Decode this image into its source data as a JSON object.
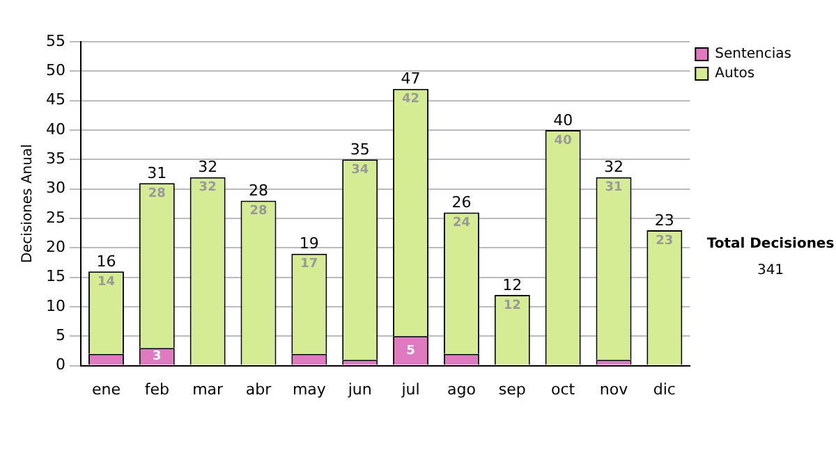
{
  "chart_data": {
    "type": "bar",
    "stacked": true,
    "ylabel": "Decisiones Anual",
    "categories": [
      "ene",
      "feb",
      "mar",
      "abr",
      "may",
      "jun",
      "jul",
      "ago",
      "sep",
      "oct",
      "nov",
      "dic"
    ],
    "series": [
      {
        "name": "Sentencias",
        "color": "#e07ac0",
        "values": [
          2,
          3,
          0,
          0,
          2,
          1,
          5,
          2,
          0,
          0,
          1,
          0
        ],
        "value_labels": [
          null,
          "3",
          null,
          null,
          null,
          null,
          "5",
          null,
          null,
          null,
          null,
          null
        ]
      },
      {
        "name": "Autos",
        "color": "#d6ec94",
        "values": [
          14,
          28,
          32,
          28,
          17,
          34,
          42,
          24,
          12,
          40,
          31,
          23
        ],
        "value_labels": [
          "14",
          "28",
          "32",
          "28",
          "17",
          "34",
          "42",
          "24",
          "12",
          "40",
          "31",
          "23"
        ]
      }
    ],
    "totals": [
      "16",
      "31",
      "32",
      "28",
      "19",
      "35",
      "47",
      "26",
      "12",
      "40",
      "32",
      "23"
    ],
    "ylim": [
      0,
      55
    ],
    "yticks": [
      0,
      5,
      10,
      15,
      20,
      25,
      30,
      35,
      40,
      45,
      50,
      55
    ],
    "grid": "y",
    "legend": "right",
    "annotations": [
      "Total Decisiones",
      "341"
    ]
  }
}
